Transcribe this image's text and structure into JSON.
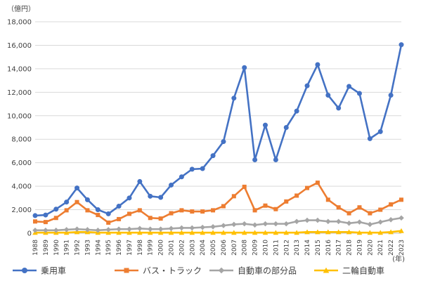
{
  "chart_data": {
    "type": "line",
    "y_unit": "（億円）",
    "x_unit": "(年)",
    "ylim": [
      0,
      18000
    ],
    "y_ticks": [
      "0",
      "2,000",
      "4,000",
      "6,000",
      "8,000",
      "10,000",
      "12,000",
      "14,000",
      "16,000",
      "18,000"
    ],
    "grid": true,
    "legend_position": "bottom",
    "x": [
      "1988",
      "1989",
      "1990",
      "1991",
      "1992",
      "1993",
      "1994",
      "1995",
      "1996",
      "1997",
      "1998",
      "1999",
      "2000",
      "2001",
      "2002",
      "2003",
      "2004",
      "2005",
      "2006",
      "2007",
      "2008",
      "2009",
      "2010",
      "2011",
      "2012",
      "2013",
      "2014",
      "2015",
      "2016",
      "2017",
      "2018",
      "2019",
      "2020",
      "2021",
      "2022",
      "2023"
    ],
    "series": [
      {
        "name": "乗用車",
        "color": "#4472C4",
        "marker": "circle",
        "values": [
          1500,
          1550,
          2050,
          2650,
          3850,
          2850,
          2000,
          1650,
          2300,
          3000,
          4400,
          3150,
          3050,
          4100,
          4800,
          5450,
          5500,
          6600,
          7800,
          11500,
          14100,
          6250,
          9200,
          6250,
          9000,
          10400,
          12550,
          14350,
          11750,
          10650,
          12500,
          11900,
          8050,
          8650,
          11750,
          16050
        ]
      },
      {
        "name": "バス・トラック",
        "color": "#ED7D31",
        "marker": "square",
        "values": [
          1000,
          950,
          1300,
          1950,
          2650,
          1950,
          1550,
          900,
          1200,
          1650,
          1950,
          1300,
          1250,
          1700,
          1950,
          1850,
          1850,
          1950,
          2300,
          3150,
          3950,
          1950,
          2350,
          2050,
          2700,
          3200,
          3850,
          4300,
          2850,
          2200,
          1700,
          2200,
          1700,
          2000,
          2450,
          2850
        ]
      },
      {
        "name": "自動車の部分品",
        "color": "#A5A5A5",
        "marker": "diamond",
        "values": [
          250,
          250,
          250,
          300,
          350,
          300,
          250,
          300,
          350,
          350,
          400,
          350,
          350,
          400,
          450,
          450,
          500,
          550,
          650,
          750,
          800,
          700,
          800,
          800,
          800,
          1000,
          1100,
          1100,
          1000,
          1000,
          850,
          950,
          750,
          950,
          1150,
          1300
        ]
      },
      {
        "name": "二輪自動車",
        "color": "#FFC000",
        "marker": "triangle",
        "values": [
          50,
          50,
          50,
          50,
          100,
          100,
          50,
          50,
          50,
          50,
          50,
          50,
          50,
          50,
          50,
          50,
          50,
          50,
          50,
          50,
          50,
          50,
          50,
          50,
          50,
          50,
          100,
          100,
          100,
          100,
          100,
          50,
          50,
          50,
          100,
          200
        ]
      }
    ]
  }
}
